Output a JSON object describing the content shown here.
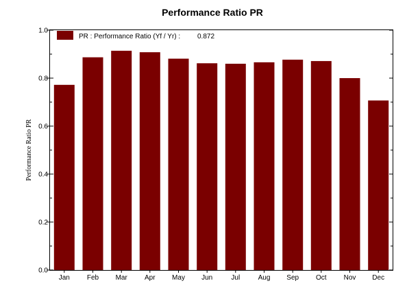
{
  "chart_data": {
    "type": "bar",
    "title": "Performance Ratio PR",
    "xlabel": "",
    "ylabel": "Performance Ratio PR",
    "categories": [
      "Jan",
      "Feb",
      "Mar",
      "Apr",
      "May",
      "Jun",
      "Jul",
      "Aug",
      "Sep",
      "Oct",
      "Nov",
      "Dec"
    ],
    "series": [
      {
        "name": "PR : Performance Ratio (Yf / Yr) :",
        "values": [
          0.772,
          0.887,
          0.914,
          0.908,
          0.881,
          0.862,
          0.86,
          0.866,
          0.877,
          0.871,
          0.8,
          0.707
        ]
      }
    ],
    "legend": {
      "label": "PR : Performance Ratio (Yf / Yr) :",
      "value": "0.872",
      "placement": "top-left"
    },
    "ylim": [
      0.0,
      1.0
    ],
    "y_ticks": [
      "0.0",
      "0.2",
      "0.4",
      "0.6",
      "0.8",
      "1.0"
    ],
    "grid": false,
    "bar_color": "#7a0000"
  }
}
